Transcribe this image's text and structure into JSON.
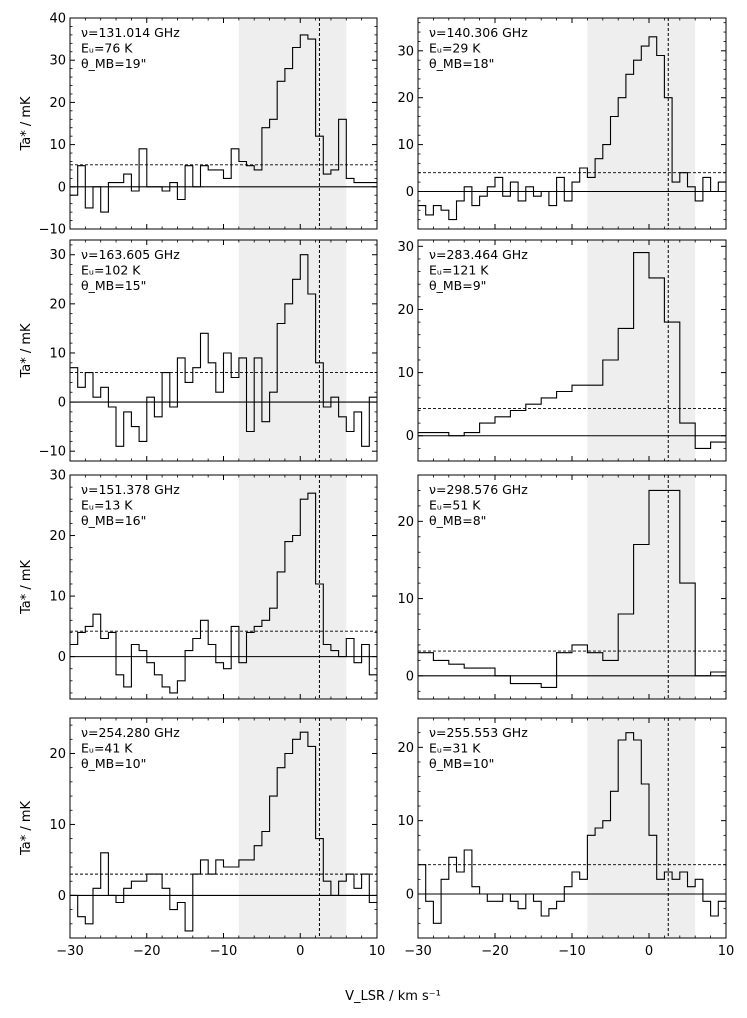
{
  "figure": {
    "xlabel": "V_LSR / km s⁻¹",
    "ylabel": "Ta* / mK"
  },
  "chart_data": [
    {
      "type": "line",
      "step": true,
      "annotation": [
        "ν=131.014 GHz",
        "Eᵤ=76 K",
        "θ_MB=19\""
      ],
      "xlim": [
        -30,
        10
      ],
      "ylim": [
        -10,
        40
      ],
      "yticks": [
        -10,
        0,
        10,
        20,
        30,
        40
      ],
      "ylabel_shown": true,
      "shade": [
        -8,
        6
      ],
      "vline": 2.5,
      "hline": 5.2,
      "x": [
        -30,
        -29,
        -28,
        -27,
        -26,
        -25,
        -24,
        -23,
        -22,
        -21,
        -20,
        -19,
        -18,
        -17,
        -16,
        -15,
        -14,
        -13,
        -12,
        -11,
        -10,
        -9,
        -8,
        -7,
        -6,
        -5,
        -4,
        -3,
        -2,
        -1,
        0,
        1,
        2,
        3,
        4,
        5,
        6,
        7,
        8,
        9
      ],
      "y": [
        -2,
        5,
        -5,
        0,
        -6,
        1,
        1,
        3,
        -1,
        9,
        0,
        0,
        -1,
        1,
        -3,
        5,
        0,
        5,
        4,
        4,
        2,
        9,
        6,
        5,
        4,
        14,
        16,
        25,
        28,
        33,
        36,
        35,
        12,
        3,
        4,
        16,
        2,
        1,
        1,
        1
      ]
    },
    {
      "type": "line",
      "step": true,
      "annotation": [
        "ν=140.306 GHz",
        "Eᵤ=29 K",
        "θ_MB=18\""
      ],
      "xlim": [
        -30,
        10
      ],
      "ylim": [
        -8,
        37
      ],
      "yticks": [
        0,
        10,
        20,
        30
      ],
      "ylabel_shown": false,
      "shade": [
        -8,
        6
      ],
      "vline": 2.5,
      "hline": 4,
      "x": [
        -30,
        -29,
        -28,
        -27,
        -26,
        -25,
        -24,
        -23,
        -22,
        -21,
        -20,
        -19,
        -18,
        -17,
        -16,
        -15,
        -14,
        -13,
        -12,
        -11,
        -10,
        -9,
        -8,
        -7,
        -6,
        -5,
        -4,
        -3,
        -2,
        -1,
        0,
        1,
        2,
        3,
        4,
        5,
        6,
        7,
        8,
        9
      ],
      "y": [
        -3,
        -5,
        -3,
        -4,
        -6,
        -2,
        1,
        -3,
        -1,
        1,
        3,
        -1,
        2,
        -2,
        1,
        -1,
        0,
        -3,
        3,
        -2,
        2,
        5,
        3,
        7,
        10,
        16,
        20,
        25,
        28,
        31,
        33,
        29,
        20,
        2,
        4,
        1,
        -2,
        3,
        0,
        2
      ]
    },
    {
      "type": "line",
      "step": true,
      "annotation": [
        "ν=163.605 GHz",
        "Eᵤ=102 K",
        "θ_MB=15\""
      ],
      "xlim": [
        -30,
        10
      ],
      "ylim": [
        -12,
        33
      ],
      "yticks": [
        -10,
        0,
        10,
        20,
        30
      ],
      "ylabel_shown": true,
      "shade": [
        -8,
        6
      ],
      "vline": 2.5,
      "hline": 6,
      "x": [
        -30,
        -29,
        -28,
        -27,
        -26,
        -25,
        -24,
        -23,
        -22,
        -21,
        -20,
        -19,
        -18,
        -17,
        -16,
        -15,
        -14,
        -13,
        -12,
        -11,
        -10,
        -9,
        -8,
        -7,
        -6,
        -5,
        -4,
        -3,
        -2,
        -1,
        0,
        1,
        2,
        3,
        4,
        5,
        6,
        7,
        8,
        9
      ],
      "y": [
        7,
        3,
        6,
        1,
        3,
        -1,
        -9,
        -2,
        -5,
        -8,
        1,
        -3,
        6,
        -1,
        9,
        4,
        7,
        14,
        8,
        2,
        10,
        5,
        9,
        -6,
        9,
        -4,
        2,
        16,
        20,
        25,
        30,
        22,
        8,
        -1,
        1,
        -3,
        -6,
        -2,
        -9,
        1
      ]
    },
    {
      "type": "line",
      "step": true,
      "annotation": [
        "ν=283.464 GHz",
        "Eᵤ=121 K",
        "θ_MB=9\""
      ],
      "xlim": [
        -30,
        10
      ],
      "ylim": [
        -4,
        31
      ],
      "yticks": [
        0,
        10,
        20,
        30
      ],
      "ylabel_shown": false,
      "shade": [
        -8,
        6
      ],
      "vline": 2.5,
      "hline": 4.3,
      "x": [
        -30,
        -26,
        -24,
        -22,
        -20,
        -18,
        -16,
        -14,
        -12,
        -10,
        -8,
        -6,
        -4,
        -2,
        0,
        2,
        4,
        6,
        8
      ],
      "y": [
        0.5,
        0,
        0.5,
        2,
        3,
        4,
        5,
        6,
        7,
        8,
        8,
        12,
        17,
        29,
        25,
        18,
        2,
        -2,
        -1
      ]
    },
    {
      "type": "line",
      "step": true,
      "annotation": [
        "ν=151.378 GHz",
        "Eᵤ=13 K",
        "θ_MB=16\""
      ],
      "xlim": [
        -30,
        10
      ],
      "ylim": [
        -7,
        30
      ],
      "yticks": [
        0,
        10,
        20,
        30
      ],
      "ylabel_shown": true,
      "shade": [
        -8,
        6
      ],
      "vline": 2.5,
      "hline": 4.2,
      "x": [
        -30,
        -29,
        -28,
        -27,
        -26,
        -25,
        -24,
        -23,
        -22,
        -21,
        -20,
        -19,
        -18,
        -17,
        -16,
        -15,
        -14,
        -13,
        -12,
        -11,
        -10,
        -9,
        -8,
        -7,
        -6,
        -5,
        -4,
        -3,
        -2,
        -1,
        0,
        1,
        2,
        3,
        4,
        5,
        6,
        7,
        8,
        9
      ],
      "y": [
        2,
        4,
        5,
        7,
        3,
        4,
        -3,
        -5,
        2,
        1,
        -1,
        -3,
        -5,
        -6,
        -4,
        1,
        3,
        6,
        2,
        -1,
        -2,
        5,
        -1,
        4,
        5,
        6,
        8,
        14,
        19,
        20,
        26,
        27,
        12,
        2,
        1,
        0,
        3,
        -1,
        2,
        -3
      ]
    },
    {
      "type": "line",
      "step": true,
      "annotation": [
        "ν=298.576 GHz",
        "Eᵤ=51 K",
        "θ_MB=8\""
      ],
      "xlim": [
        -30,
        10
      ],
      "ylim": [
        -3,
        26
      ],
      "yticks": [
        0,
        10,
        20
      ],
      "ylabel_shown": false,
      "shade": [
        -8,
        6
      ],
      "vline": 2.5,
      "hline": 3.2,
      "x": [
        -30,
        -28,
        -26,
        -24,
        -22,
        -20,
        -18,
        -16,
        -14,
        -12,
        -10,
        -8,
        -6,
        -4,
        -2,
        0,
        2,
        4,
        6,
        8
      ],
      "y": [
        3,
        2,
        1.5,
        1,
        1,
        0,
        -1,
        -1,
        -1.5,
        3,
        4,
        3,
        2,
        8,
        17,
        24,
        24,
        12,
        0,
        0.5
      ]
    },
    {
      "type": "line",
      "step": true,
      "annotation": [
        "ν=254.280 GHz",
        "Eᵤ=41 K",
        "θ_MB=10\""
      ],
      "xlim": [
        -30,
        10
      ],
      "ylim": [
        -6,
        25
      ],
      "yticks": [
        0,
        10,
        20
      ],
      "ylabel_shown": true,
      "shade": [
        -8,
        6
      ],
      "vline": 2.5,
      "hline": 3,
      "x": [
        -30,
        -29,
        -28,
        -27,
        -26,
        -25,
        -24,
        -23,
        -22,
        -21,
        -20,
        -19,
        -18,
        -17,
        -16,
        -15,
        -14,
        -13,
        -12,
        -11,
        -10,
        -9,
        -8,
        -7,
        -6,
        -5,
        -4,
        -3,
        -2,
        -1,
        0,
        1,
        2,
        3,
        4,
        5,
        6,
        7,
        8,
        9
      ],
      "y": [
        0,
        -3,
        -4,
        1,
        6,
        0,
        -1,
        1,
        2,
        2,
        3,
        3,
        1,
        -2,
        -1,
        -5,
        3,
        5,
        3,
        5,
        4,
        4,
        5,
        5,
        7,
        9,
        14,
        18,
        20,
        22,
        23,
        21,
        8,
        2,
        0,
        2,
        3,
        1,
        3,
        -1
      ]
    },
    {
      "type": "line",
      "step": true,
      "annotation": [
        "ν=255.553 GHz",
        "Eᵤ=31 K",
        "θ_MB=10\""
      ],
      "xlim": [
        -30,
        10
      ],
      "ylim": [
        -6,
        24
      ],
      "yticks": [
        0,
        10,
        20
      ],
      "ylabel_shown": false,
      "shade": [
        -8,
        6
      ],
      "vline": 2.5,
      "hline": 4,
      "x": [
        -30,
        -29,
        -28,
        -27,
        -26,
        -25,
        -24,
        -23,
        -22,
        -21,
        -20,
        -19,
        -18,
        -17,
        -16,
        -15,
        -14,
        -13,
        -12,
        -11,
        -10,
        -9,
        -8,
        -7,
        -6,
        -5,
        -4,
        -3,
        -2,
        -1,
        0,
        1,
        2,
        3,
        4,
        5,
        6,
        7,
        8,
        9
      ],
      "y": [
        4,
        -1,
        -4,
        2,
        5,
        3,
        6,
        1,
        0,
        -1,
        -1,
        0,
        -1,
        -2,
        0,
        -1,
        -3,
        -2,
        -1,
        1,
        3,
        2,
        8,
        9,
        10,
        14,
        21,
        22,
        21,
        15,
        8,
        2,
        3,
        2,
        3,
        1,
        2,
        -1,
        -3,
        -1
      ]
    }
  ]
}
